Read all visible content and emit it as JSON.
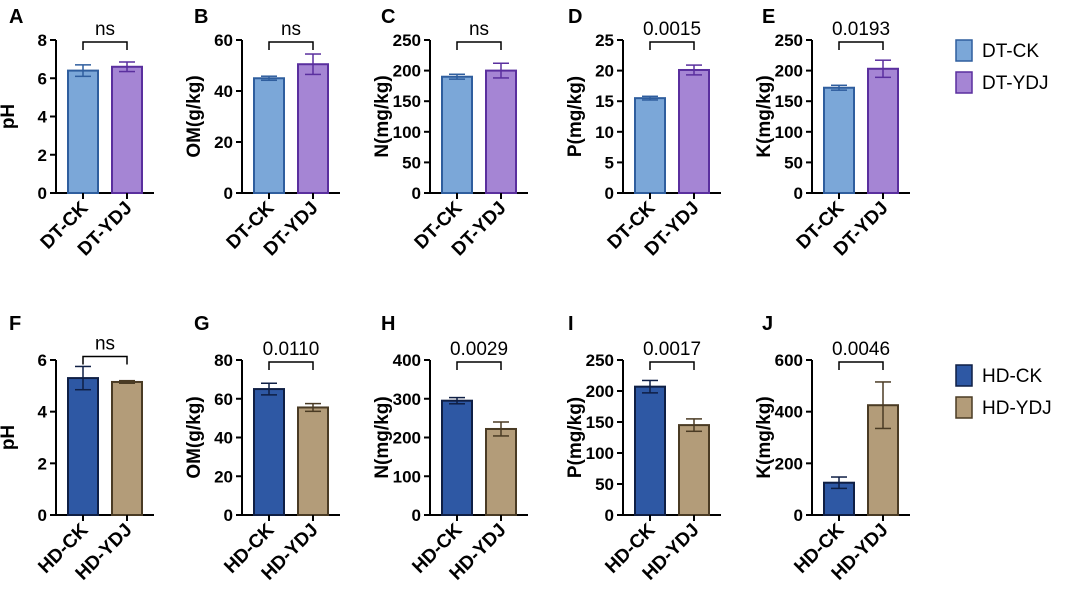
{
  "chart_data": [
    {
      "type": "bar",
      "panel": "A",
      "ylabel": "pH",
      "ylim": [
        0,
        8
      ],
      "yticks": [
        0,
        2,
        4,
        6,
        8
      ],
      "categories": [
        "DT-CK",
        "DT-YDJ"
      ],
      "values": [
        6.4,
        6.6
      ],
      "errors": [
        0.3,
        0.25
      ],
      "colors": [
        "#7ba7d8",
        "#a585d4"
      ],
      "edge_colors": [
        "#2f5e9e",
        "#5a2f9e"
      ],
      "annotation": "ns"
    },
    {
      "type": "bar",
      "panel": "B",
      "ylabel": "OM(g/kg)",
      "ylim": [
        0,
        60
      ],
      "yticks": [
        0,
        20,
        40,
        60
      ],
      "categories": [
        "DT-CK",
        "DT-YDJ"
      ],
      "values": [
        45,
        50.5
      ],
      "errors": [
        0.8,
        4
      ],
      "colors": [
        "#7ba7d8",
        "#a585d4"
      ],
      "edge_colors": [
        "#2f5e9e",
        "#5a2f9e"
      ],
      "annotation": "ns"
    },
    {
      "type": "bar",
      "panel": "C",
      "ylabel": "N(mg/kg)",
      "ylim": [
        0,
        250
      ],
      "yticks": [
        0,
        50,
        100,
        150,
        200,
        250
      ],
      "categories": [
        "DT-CK",
        "DT-YDJ"
      ],
      "values": [
        190,
        200
      ],
      "errors": [
        4,
        12
      ],
      "colors": [
        "#7ba7d8",
        "#a585d4"
      ],
      "edge_colors": [
        "#2f5e9e",
        "#5a2f9e"
      ],
      "annotation": "ns"
    },
    {
      "type": "bar",
      "panel": "D",
      "ylabel": "P(mg/kg)",
      "ylim": [
        0,
        25
      ],
      "yticks": [
        0,
        5,
        10,
        15,
        20,
        25
      ],
      "categories": [
        "DT-CK",
        "DT-YDJ"
      ],
      "values": [
        15.5,
        20.1
      ],
      "errors": [
        0.3,
        0.8
      ],
      "colors": [
        "#7ba7d8",
        "#a585d4"
      ],
      "edge_colors": [
        "#2f5e9e",
        "#5a2f9e"
      ],
      "annotation": "0.0015"
    },
    {
      "type": "bar",
      "panel": "E",
      "ylabel": "K(mg/kg)",
      "ylim": [
        0,
        250
      ],
      "yticks": [
        0,
        50,
        100,
        150,
        200,
        250
      ],
      "categories": [
        "DT-CK",
        "DT-YDJ"
      ],
      "values": [
        172,
        203
      ],
      "errors": [
        4,
        14
      ],
      "colors": [
        "#7ba7d8",
        "#a585d4"
      ],
      "edge_colors": [
        "#2f5e9e",
        "#5a2f9e"
      ],
      "annotation": "0.0193"
    },
    {
      "type": "bar",
      "panel": "F",
      "ylabel": "pH",
      "ylim": [
        0,
        6
      ],
      "yticks": [
        0,
        2,
        4,
        6
      ],
      "categories": [
        "HD-CK",
        "HD-YDJ"
      ],
      "values": [
        5.3,
        5.15
      ],
      "errors": [
        0.45,
        0.05
      ],
      "colors": [
        "#2e58a4",
        "#b39c79"
      ],
      "edge_colors": [
        "#0f1f45",
        "#4a3b24"
      ],
      "annotation": "ns"
    },
    {
      "type": "bar",
      "panel": "G",
      "ylabel": "OM(g/kg)",
      "ylim": [
        0,
        80
      ],
      "yticks": [
        0,
        20,
        40,
        60,
        80
      ],
      "categories": [
        "HD-CK",
        "HD-YDJ"
      ],
      "values": [
        65,
        55.5
      ],
      "errors": [
        3,
        2
      ],
      "colors": [
        "#2e58a4",
        "#b39c79"
      ],
      "edge_colors": [
        "#0f1f45",
        "#4a3b24"
      ],
      "annotation": "0.0110"
    },
    {
      "type": "bar",
      "panel": "H",
      "ylabel": "N(mg/kg)",
      "ylim": [
        0,
        400
      ],
      "yticks": [
        0,
        100,
        200,
        300,
        400
      ],
      "categories": [
        "HD-CK",
        "HD-YDJ"
      ],
      "values": [
        295,
        222
      ],
      "errors": [
        8,
        18
      ],
      "colors": [
        "#2e58a4",
        "#b39c79"
      ],
      "edge_colors": [
        "#0f1f45",
        "#4a3b24"
      ],
      "annotation": "0.0029"
    },
    {
      "type": "bar",
      "panel": "I",
      "ylabel": "P(mg/kg)",
      "ylim": [
        0,
        250
      ],
      "yticks": [
        0,
        50,
        100,
        150,
        200,
        250
      ],
      "categories": [
        "HD-CK",
        "HD-YDJ"
      ],
      "values": [
        207,
        145
      ],
      "errors": [
        10,
        10
      ],
      "colors": [
        "#2e58a4",
        "#b39c79"
      ],
      "edge_colors": [
        "#0f1f45",
        "#4a3b24"
      ],
      "annotation": "0.0017"
    },
    {
      "type": "bar",
      "panel": "J",
      "ylabel": "K(mg/kg)",
      "ylim": [
        0,
        600
      ],
      "yticks": [
        0,
        200,
        400,
        600
      ],
      "categories": [
        "HD-CK",
        "HD-YDJ"
      ],
      "values": [
        125,
        425
      ],
      "errors": [
        22,
        90
      ],
      "colors": [
        "#2e58a4",
        "#b39c79"
      ],
      "edge_colors": [
        "#0f1f45",
        "#4a3b24"
      ],
      "annotation": "0.0046"
    }
  ],
  "legends": [
    {
      "entries": [
        {
          "label": "DT-CK",
          "color": "#7ba7d8",
          "edge": "#2f5e9e"
        },
        {
          "label": "DT-YDJ",
          "color": "#a585d4",
          "edge": "#5a2f9e"
        }
      ]
    },
    {
      "entries": [
        {
          "label": "HD-CK",
          "color": "#2e58a4",
          "edge": "#0f1f45"
        },
        {
          "label": "HD-YDJ",
          "color": "#b39c79",
          "edge": "#4a3b24"
        }
      ]
    }
  ]
}
